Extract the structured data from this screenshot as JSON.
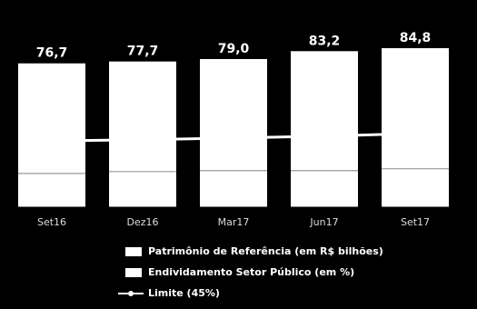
{
  "chart_data": {
    "type": "bar",
    "categories": [
      "Set16",
      "Dez16",
      "Mar17",
      "Jun17",
      "Set17"
    ],
    "ylim": [
      0,
      110
    ],
    "series": [
      {
        "name": "Patrimônio de Referência (em R$ bilhões)",
        "color": "#ffffff",
        "type": "bar",
        "values": [
          76.7,
          77.7,
          79.0,
          83.2,
          84.8
        ],
        "value_labels": [
          "76,7",
          "77,7",
          "79,0",
          "83,2",
          "84,8"
        ]
      },
      {
        "name": "Endividamento Setor Público (em %)",
        "color": "#ffffff",
        "type": "bar",
        "values": [
          18.0,
          19.0,
          19.5,
          19.5,
          20.5
        ]
      },
      {
        "name": "Limite (45%)",
        "color": "#ffffff",
        "type": "line",
        "values": [
          35.4,
          36.0,
          36.9,
          37.9,
          39.3
        ]
      }
    ]
  }
}
